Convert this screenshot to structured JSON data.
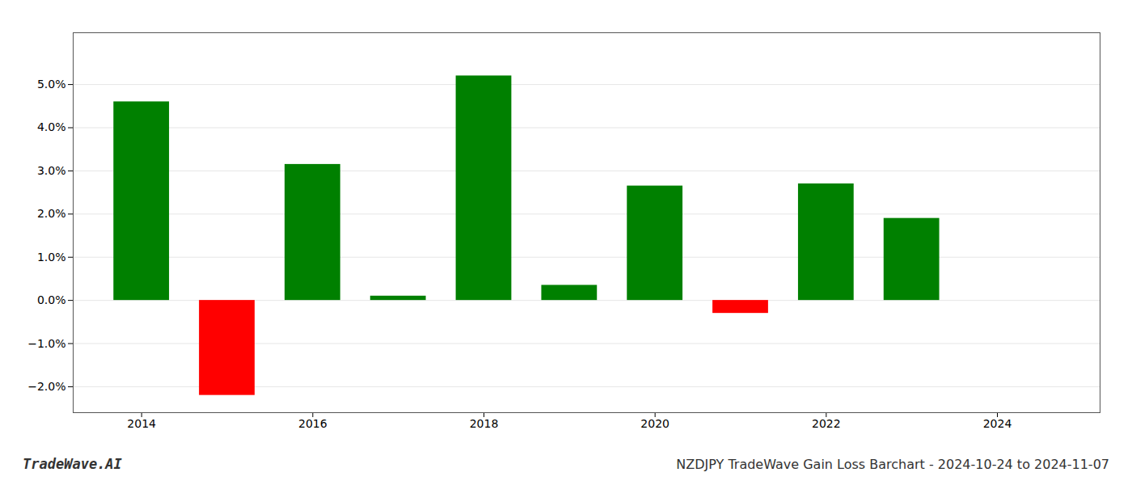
{
  "chart_data": {
    "type": "bar",
    "x": [
      2014,
      2015,
      2016,
      2017,
      2018,
      2019,
      2020,
      2021,
      2022,
      2023
    ],
    "values": [
      0.046,
      -0.022,
      0.0315,
      0.001,
      0.052,
      0.0035,
      0.0265,
      -0.003,
      0.027,
      0.019
    ],
    "colors": [
      "#008000",
      "#ff0000",
      "#008000",
      "#008000",
      "#008000",
      "#008000",
      "#008000",
      "#ff0000",
      "#008000",
      "#008000"
    ],
    "xlim": [
      2013.2,
      2025.2
    ],
    "xticks": [
      2014,
      2016,
      2018,
      2020,
      2022,
      2024
    ],
    "ylim": [
      -0.026,
      0.062
    ],
    "yticks": [
      {
        "value": -0.02,
        "label": "−2.0%"
      },
      {
        "value": -0.01,
        "label": "−1.0%"
      },
      {
        "value": 0.0,
        "label": "0.0%"
      },
      {
        "value": 0.01,
        "label": "1.0%"
      },
      {
        "value": 0.02,
        "label": "2.0%"
      },
      {
        "value": 0.03,
        "label": "3.0%"
      },
      {
        "value": 0.04,
        "label": "4.0%"
      },
      {
        "value": 0.05,
        "label": "5.0%"
      }
    ],
    "grid": true,
    "annotations": [
      "TradeWave.AI",
      "NZDJPY TradeWave Gain Loss Barchart - 2024-10-24 to 2024-11-07"
    ]
  }
}
